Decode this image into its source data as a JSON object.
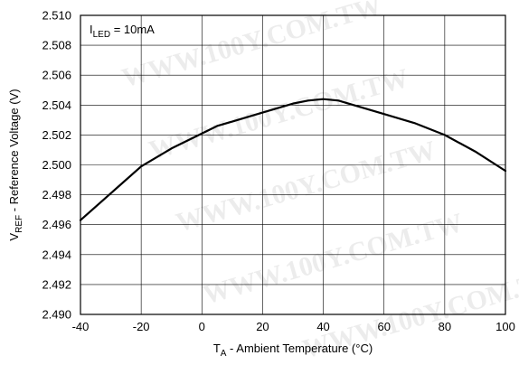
{
  "watermark": "WWW.100Y.COM.TW",
  "chart_data": {
    "type": "line",
    "annotation": "I_LED = 10mA",
    "annotation_main": "I",
    "annotation_sub": "LED",
    "annotation_rest": " = 10mA",
    "xlabel_main": "T",
    "xlabel_sub": "A",
    "xlabel_rest": " - Ambient Temperature (°C)",
    "ylabel_main": "V",
    "ylabel_sub": "REF",
    "ylabel_rest": " - Reference Voltage (V)",
    "xlim": [
      -40,
      100
    ],
    "ylim": [
      2.49,
      2.51
    ],
    "x_ticks": [
      -40,
      -20,
      0,
      20,
      40,
      60,
      80,
      100
    ],
    "y_ticks": [
      "2.490",
      "2.492",
      "2.494",
      "2.496",
      "2.498",
      "2.500",
      "2.502",
      "2.504",
      "2.506",
      "2.508",
      "2.510"
    ],
    "grid": true,
    "series": [
      {
        "color": "#000000",
        "x": [
          -40,
          -30,
          -20,
          -10,
          0,
          5,
          10,
          20,
          30,
          35,
          40,
          45,
          50,
          60,
          70,
          80,
          90,
          100
        ],
        "y": [
          2.4963,
          2.4981,
          2.4999,
          2.5011,
          2.5021,
          2.5026,
          2.5029,
          2.5035,
          2.5041,
          2.5043,
          2.5044,
          2.5043,
          2.504,
          2.5034,
          2.5028,
          2.502,
          2.5009,
          2.4996
        ]
      }
    ]
  }
}
